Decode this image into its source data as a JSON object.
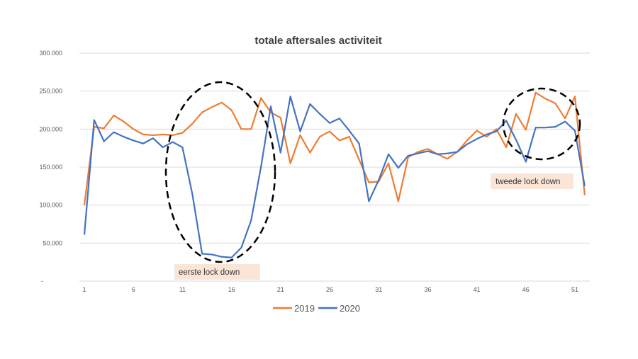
{
  "chart_data": {
    "type": "line",
    "title": "totale aftersales activiteit",
    "xlabel": "",
    "ylabel": "",
    "ylim": [
      0,
      300000
    ],
    "y_ticks": [
      "-",
      "50.000",
      "100.000",
      "150.000",
      "200.000",
      "250.000",
      "300.000"
    ],
    "x_ticks": [
      "1",
      "6",
      "11",
      "16",
      "21",
      "26",
      "31",
      "36",
      "41",
      "46",
      "51"
    ],
    "x": [
      1,
      2,
      3,
      4,
      5,
      6,
      7,
      8,
      9,
      10,
      11,
      12,
      13,
      14,
      15,
      16,
      17,
      18,
      19,
      20,
      21,
      22,
      23,
      24,
      25,
      26,
      27,
      28,
      29,
      30,
      31,
      32,
      33,
      34,
      35,
      36,
      37,
      38,
      39,
      40,
      41,
      42,
      43,
      44,
      45,
      46,
      47,
      48,
      49,
      50,
      51,
      52
    ],
    "grid": "horizontal",
    "legend_position": "bottom",
    "series": [
      {
        "name": "2019",
        "color": "#ED7D31",
        "values": [
          100000,
          203000,
          201000,
          218000,
          210000,
          200000,
          193000,
          192000,
          193000,
          192000,
          195000,
          207000,
          222000,
          229000,
          235000,
          225000,
          200000,
          200000,
          241000,
          222000,
          215000,
          155000,
          192000,
          169000,
          190000,
          197000,
          185000,
          190000,
          160000,
          130000,
          131000,
          155000,
          105000,
          163000,
          170000,
          174000,
          167000,
          161000,
          170000,
          185000,
          198000,
          190000,
          200000,
          176000,
          220000,
          199000,
          248000,
          240000,
          234000,
          214000,
          243000,
          113000
        ]
      },
      {
        "name": "2020",
        "color": "#4472C4",
        "values": [
          61000,
          212000,
          184000,
          196000,
          190000,
          185000,
          181000,
          188000,
          176000,
          183000,
          176000,
          115000,
          36000,
          35000,
          32000,
          31000,
          44000,
          80000,
          150000,
          230000,
          169000,
          243000,
          197000,
          233000,
          220000,
          208000,
          214000,
          198000,
          181000,
          105000,
          133000,
          167000,
          149000,
          165000,
          168000,
          171000,
          167000,
          168000,
          170000,
          180000,
          187000,
          193000,
          197000,
          211000,
          186000,
          157000,
          202000,
          202000,
          203000,
          210000,
          198000,
          125000
        ]
      }
    ],
    "annotations": [
      {
        "text": "eerste lock down",
        "weeks": [
          11,
          19
        ]
      },
      {
        "text": "tweede lock down",
        "weeks": [
          44,
          51
        ]
      }
    ],
    "annotation_fill": "#FBE5D6"
  }
}
